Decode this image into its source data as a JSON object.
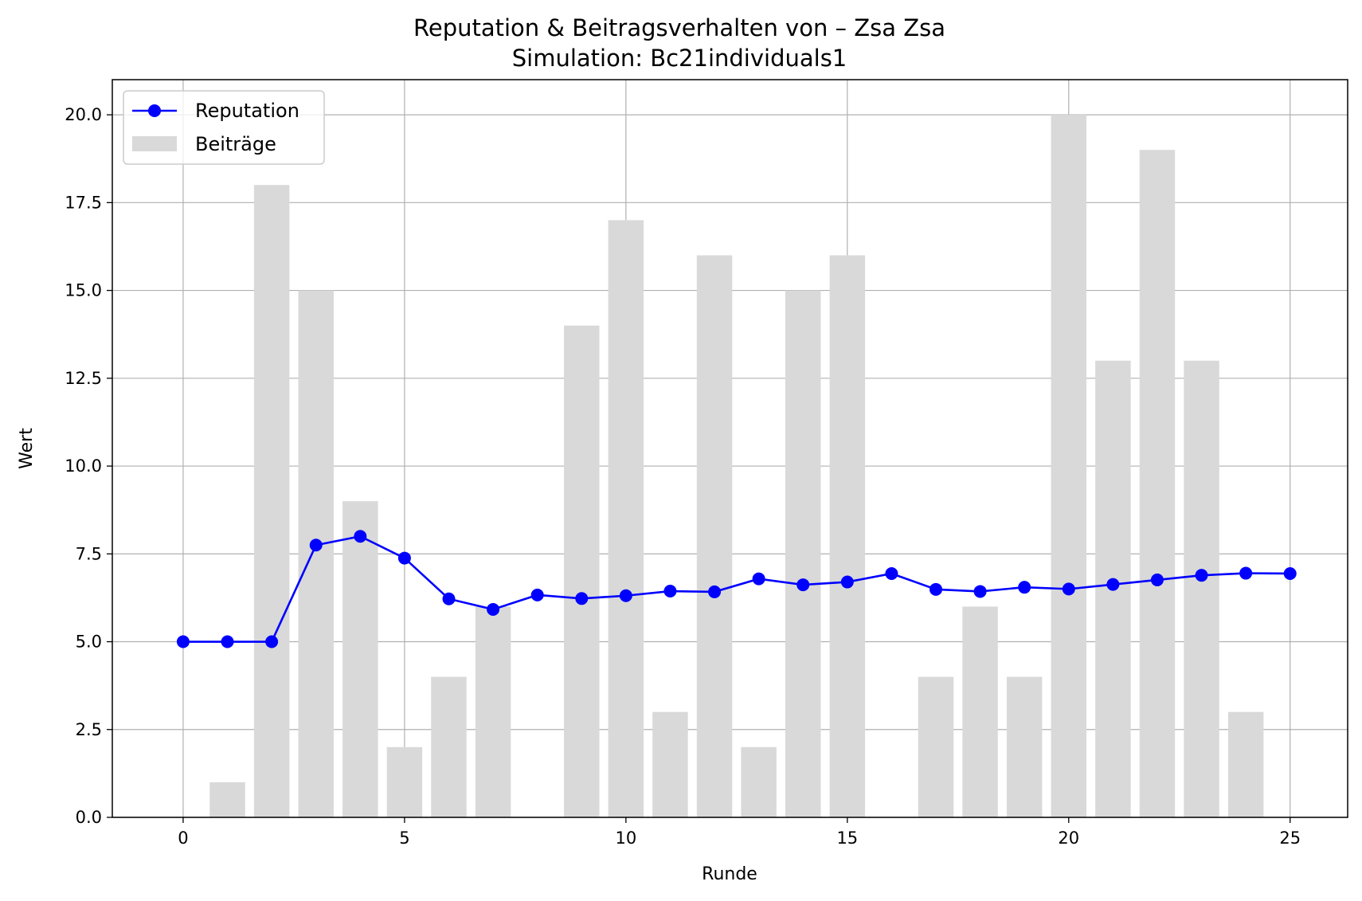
{
  "chart_data": {
    "type": "bar+line",
    "title": "Reputation & Beitragsverhalten von – Zsa Zsa",
    "subtitle": "Simulation: Bc21individuals1",
    "xlabel": "Runde",
    "ylabel": "Wert",
    "xlim": [
      -1.6,
      26.3
    ],
    "ylim": [
      0,
      21
    ],
    "x_ticks": [
      0,
      5,
      10,
      15,
      20,
      25
    ],
    "y_ticks": [
      0.0,
      2.5,
      5.0,
      7.5,
      10.0,
      12.5,
      15.0,
      17.5,
      20.0
    ],
    "y_tick_labels": [
      "0.0",
      "2.5",
      "5.0",
      "7.5",
      "10.0",
      "12.5",
      "15.0",
      "17.5",
      "20.0"
    ],
    "grid": true,
    "legend_position": "top-left",
    "legend": [
      "Reputation",
      "Beiträge"
    ],
    "bars": {
      "name": "Beiträge",
      "color": "#d9d9d9",
      "x": [
        0,
        1,
        2,
        3,
        4,
        5,
        6,
        7,
        8,
        9,
        10,
        11,
        12,
        13,
        14,
        15,
        16,
        17,
        18,
        19,
        20,
        21,
        22,
        23,
        24
      ],
      "values": [
        0,
        1,
        18,
        15,
        9,
        2,
        4,
        6,
        0,
        14,
        17,
        3,
        16,
        2,
        15,
        16,
        0,
        4,
        6,
        4,
        20,
        13,
        19,
        13,
        3
      ]
    },
    "line": {
      "name": "Reputation",
      "color": "#0000ff",
      "x": [
        0,
        1,
        2,
        3,
        4,
        5,
        6,
        7,
        8,
        9,
        10,
        11,
        12,
        13,
        14,
        15,
        16,
        17,
        18,
        19,
        20,
        21,
        22,
        23,
        24,
        25
      ],
      "values": [
        5.0,
        5.0,
        5.0,
        7.75,
        8.0,
        7.38,
        6.22,
        5.92,
        6.33,
        6.23,
        6.31,
        6.44,
        6.42,
        6.79,
        6.62,
        6.7,
        6.94,
        6.49,
        6.43,
        6.55,
        6.5,
        6.63,
        6.76,
        6.89,
        6.95,
        6.94
      ]
    }
  }
}
